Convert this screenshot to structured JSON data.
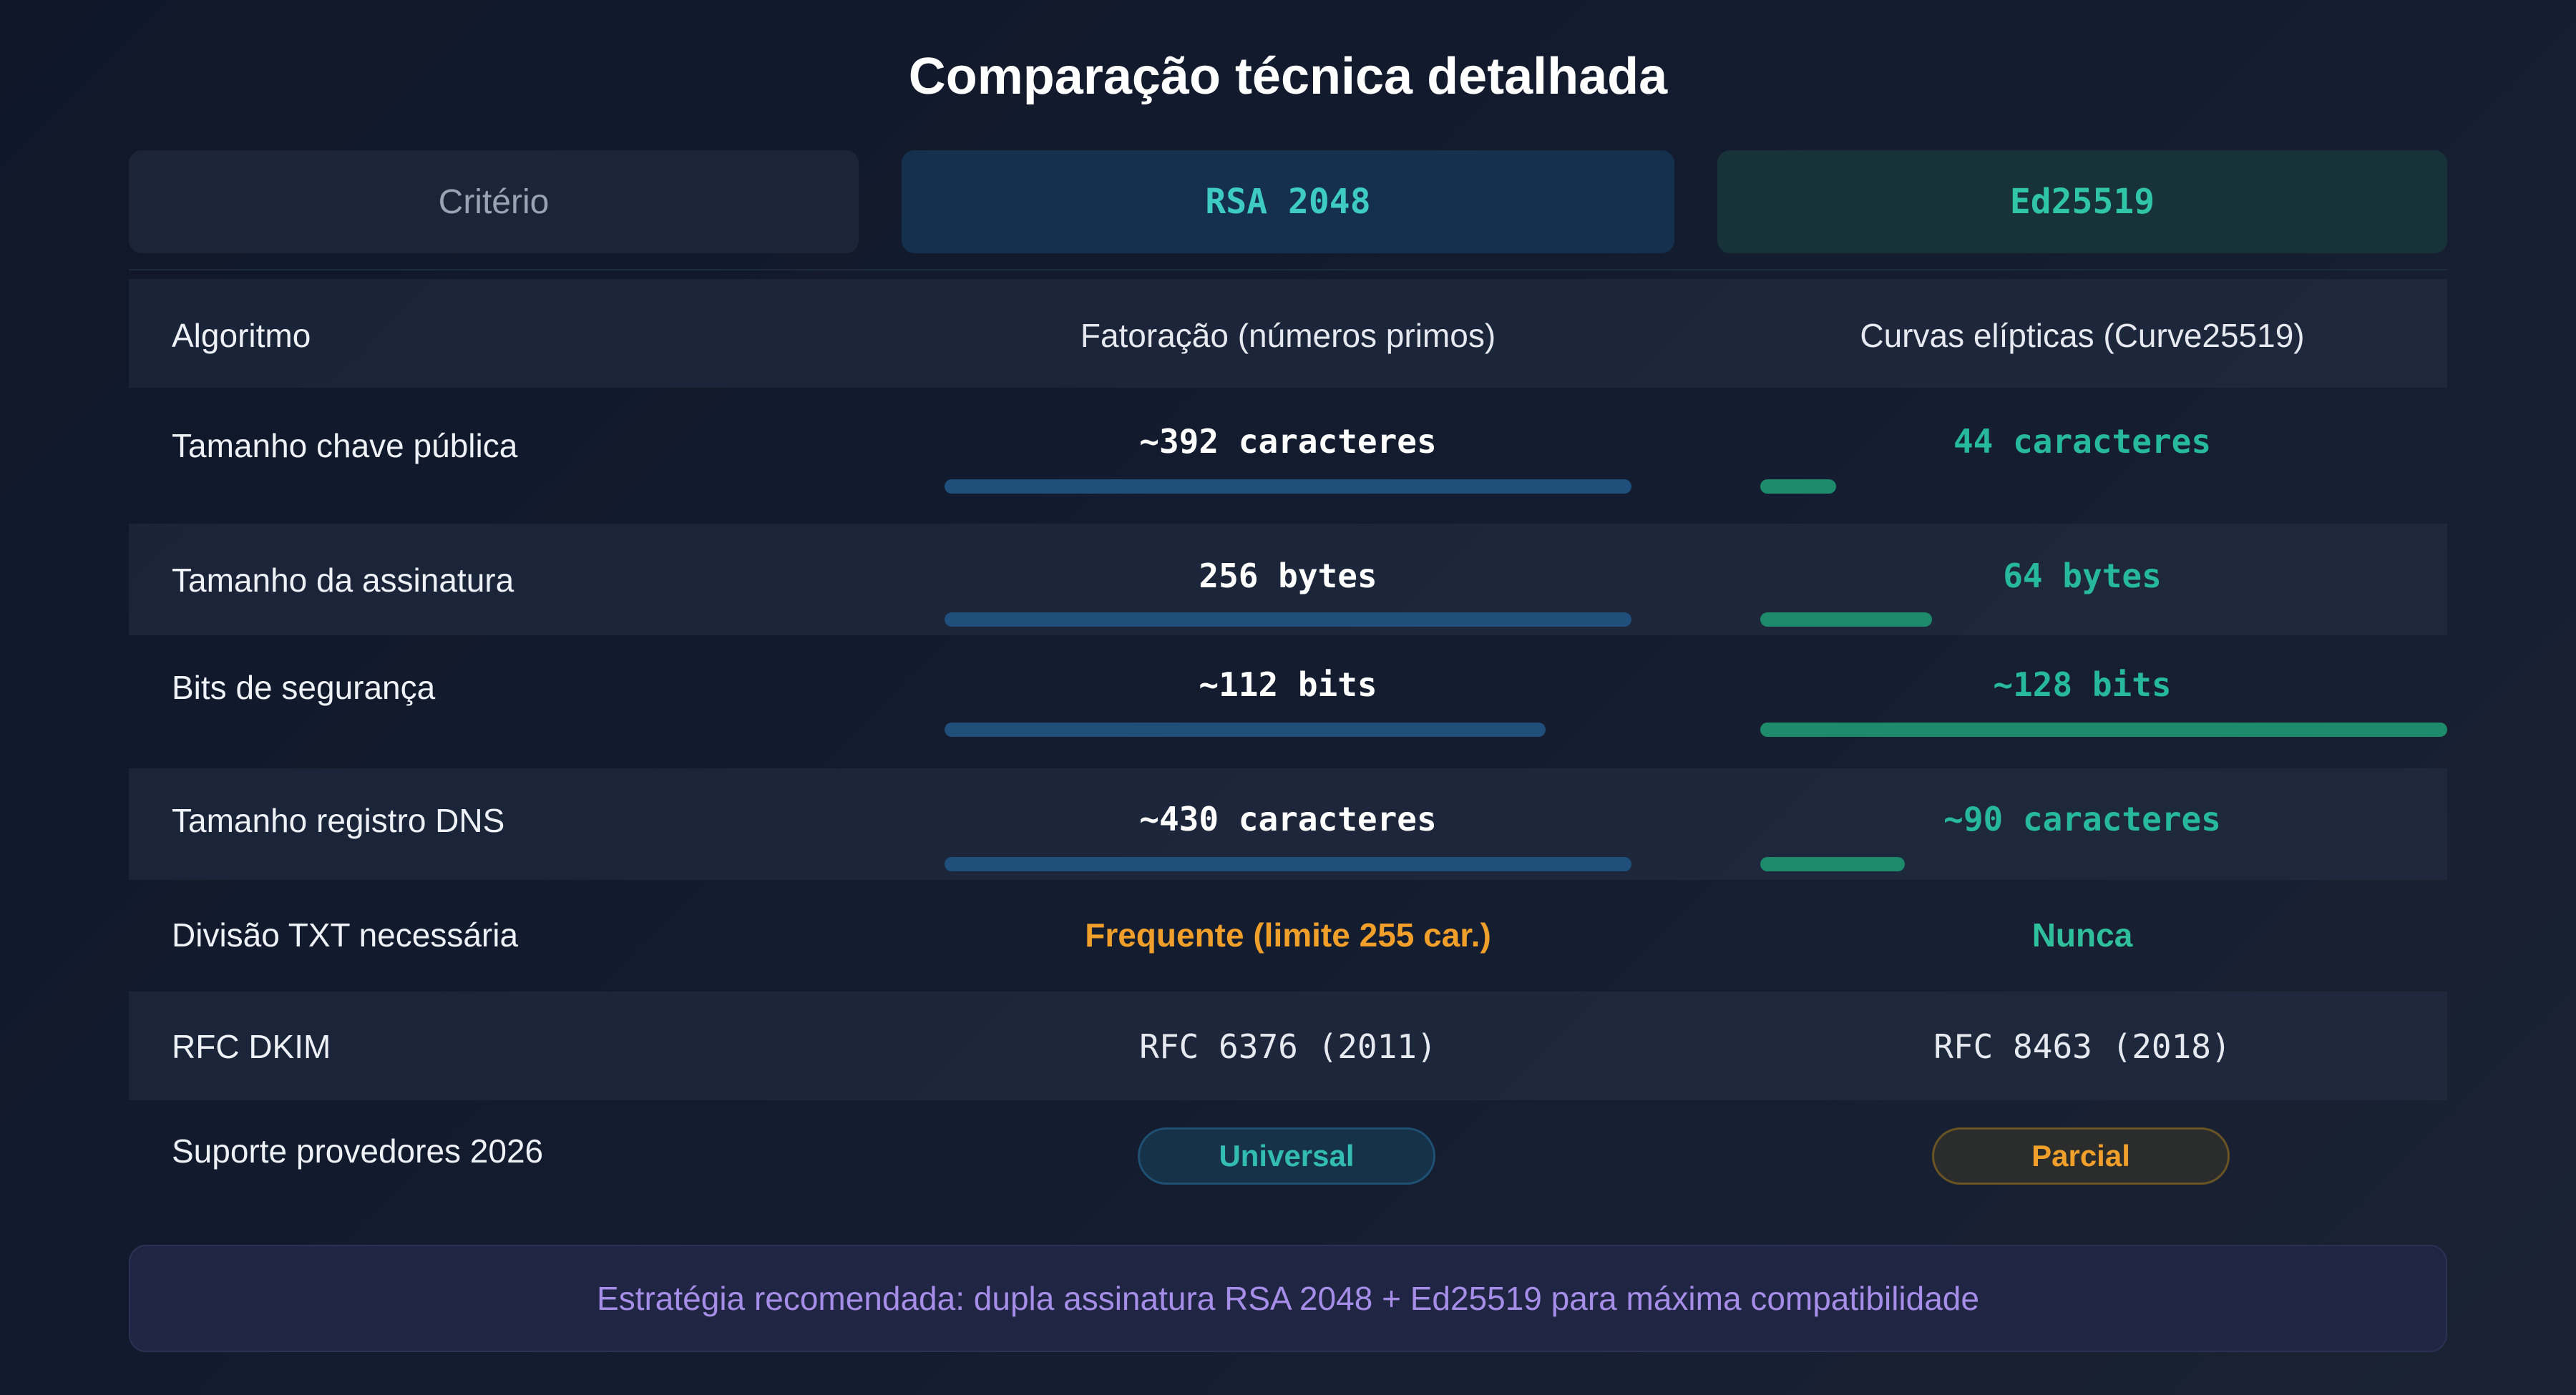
{
  "title": "Comparação técnica detalhada",
  "headers": {
    "criterion": "Critério",
    "rsa": "RSA 2048",
    "ed": "Ed25519"
  },
  "rows": [
    {
      "label": "Algoritmo",
      "rsa": "Fatoração (números primos)",
      "ed": "Curvas elípticas (Curve25519)"
    },
    {
      "label": "Tamanho chave pública",
      "rsa": "~392 caracteres",
      "ed": "44 caracteres",
      "rsa_bar_fraction": 1.0,
      "ed_bar_fraction": 0.11
    },
    {
      "label": "Tamanho da assinatura",
      "rsa": "256 bytes",
      "ed": "64 bytes",
      "rsa_bar_fraction": 1.0,
      "ed_bar_fraction": 0.25
    },
    {
      "label": "Bits de segurança",
      "rsa": "~112 bits",
      "ed": "~128 bits",
      "rsa_bar_fraction": 0.875,
      "ed_bar_fraction": 1.0
    },
    {
      "label": "Tamanho registro DNS",
      "rsa": "~430 caracteres",
      "ed": "~90 caracteres",
      "rsa_bar_fraction": 1.0,
      "ed_bar_fraction": 0.21
    },
    {
      "label": "Divisão TXT necessária",
      "rsa": "Frequente (limite 255 car.)",
      "ed": "Nunca"
    },
    {
      "label": "RFC DKIM",
      "rsa": "RFC 6376 (2011)",
      "ed": "RFC 8463 (2018)"
    },
    {
      "label": "Suporte provedores 2026",
      "rsa": "Universal",
      "ed": "Parcial"
    }
  ],
  "footer": "Estratégia recomendada: dupla assinatura RSA 2048 + Ed25519 para máxima compatibilidade",
  "colors": {
    "rsa_bar": "#1f4f7a",
    "ed_bar": "#1c8a6b",
    "warning": "#f0a02a",
    "accent_teal": "#27b8a0",
    "footer_text": "#a58de8"
  }
}
